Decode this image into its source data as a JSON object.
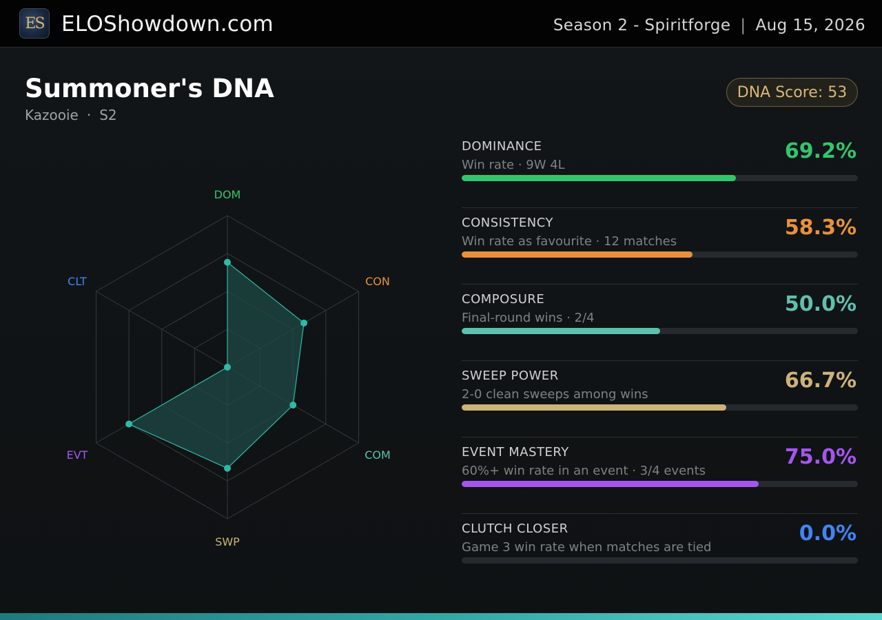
{
  "header": {
    "logo_text": "ES",
    "site_name": "ELOShowdown.com",
    "season": "Season 2 - Spiritforge",
    "separator": "|",
    "date": "Aug 15, 2026"
  },
  "profile": {
    "title": "Summoner's DNA",
    "player": "Kazooie",
    "dot": "·",
    "season_code": "S2",
    "dna_score_label": "DNA Score: 53"
  },
  "colors": {
    "dominance": "#34c46e",
    "consistency": "#e8913d",
    "composure": "#5fc0ad",
    "sweep": "#cdb27a",
    "event": "#a456ef",
    "clutch": "#3f85f4",
    "radar_fill": "#1d4a45",
    "radar_stroke": "#2fb9a7"
  },
  "chart_data": {
    "type": "radar",
    "axes": [
      "DOM",
      "CON",
      "COM",
      "SWP",
      "EVT",
      "CLT"
    ],
    "values": [
      69.2,
      58.3,
      50.0,
      66.7,
      75.0,
      0.0
    ],
    "range": [
      0,
      100
    ],
    "rings": 4
  },
  "metrics": [
    {
      "key": "dominance",
      "label": "DOMINANCE",
      "desc": "Win rate · 9W 4L",
      "value_text": "69.2%",
      "value": 69.2
    },
    {
      "key": "consistency",
      "label": "CONSISTENCY",
      "desc": "Win rate as favourite · 12 matches",
      "value_text": "58.3%",
      "value": 58.3
    },
    {
      "key": "composure",
      "label": "COMPOSURE",
      "desc": "Final-round wins · 2/4",
      "value_text": "50.0%",
      "value": 50.0
    },
    {
      "key": "sweep",
      "label": "SWEEP POWER",
      "desc": "2-0 clean sweeps among wins",
      "value_text": "66.7%",
      "value": 66.7
    },
    {
      "key": "event",
      "label": "EVENT MASTERY",
      "desc": "60%+ win rate in an event · 3/4 events",
      "value_text": "75.0%",
      "value": 75.0
    },
    {
      "key": "clutch",
      "label": "CLUTCH CLOSER",
      "desc": "Game 3 win rate when matches are tied",
      "value_text": "0.0%",
      "value": 0.0
    }
  ]
}
